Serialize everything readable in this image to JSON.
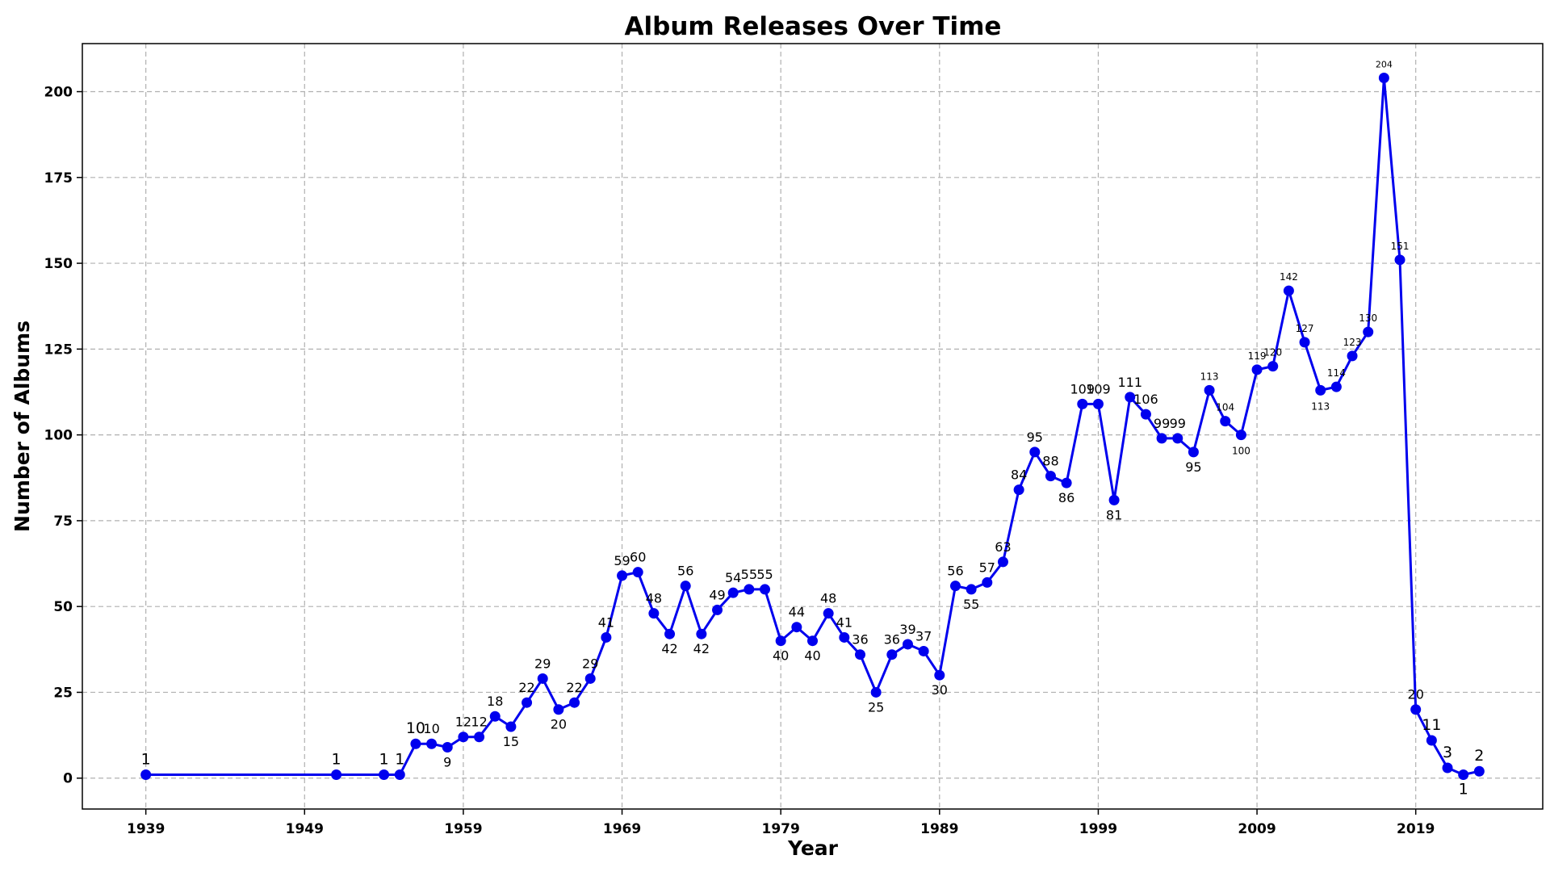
{
  "chart_data": {
    "type": "line",
    "title": "Album Releases Over Time",
    "xlabel": "Year",
    "ylabel": "Number of Albums",
    "xlim": [
      1935,
      2027
    ],
    "ylim": [
      -9,
      214
    ],
    "xticks": [
      1939,
      1949,
      1959,
      1969,
      1979,
      1989,
      1999,
      2009,
      2019
    ],
    "yticks": [
      0,
      25,
      50,
      75,
      100,
      125,
      150,
      175,
      200
    ],
    "grid": true,
    "line_color": "#0000ee",
    "x": [
      1939,
      1951,
      1954,
      1955,
      1956,
      1957,
      1958,
      1959,
      1960,
      1961,
      1962,
      1963,
      1964,
      1965,
      1966,
      1967,
      1968,
      1969,
      1970,
      1971,
      1972,
      1973,
      1974,
      1975,
      1976,
      1977,
      1978,
      1979,
      1980,
      1981,
      1982,
      1983,
      1984,
      1985,
      1986,
      1987,
      1988,
      1989,
      1990,
      1991,
      1992,
      1993,
      1994,
      1995,
      1996,
      1997,
      1998,
      1999,
      2000,
      2001,
      2002,
      2003,
      2004,
      2005,
      2006,
      2007,
      2008,
      2009,
      2010,
      2011,
      2012,
      2013,
      2014,
      2015,
      2016,
      2017,
      2018,
      2019,
      2020,
      2021,
      2022,
      2023
    ],
    "values": [
      1,
      1,
      1,
      1,
      10,
      10,
      9,
      12,
      12,
      18,
      15,
      22,
      29,
      20,
      22,
      29,
      41,
      59,
      60,
      48,
      42,
      56,
      42,
      49,
      54,
      55,
      55,
      40,
      44,
      40,
      48,
      41,
      36,
      25,
      36,
      39,
      37,
      30,
      56,
      55,
      57,
      63,
      84,
      95,
      88,
      86,
      109,
      109,
      81,
      111,
      106,
      99,
      99,
      95,
      113,
      104,
      100,
      119,
      120,
      142,
      127,
      113,
      114,
      123,
      130,
      204,
      151,
      20,
      11,
      3,
      1,
      2
    ]
  }
}
